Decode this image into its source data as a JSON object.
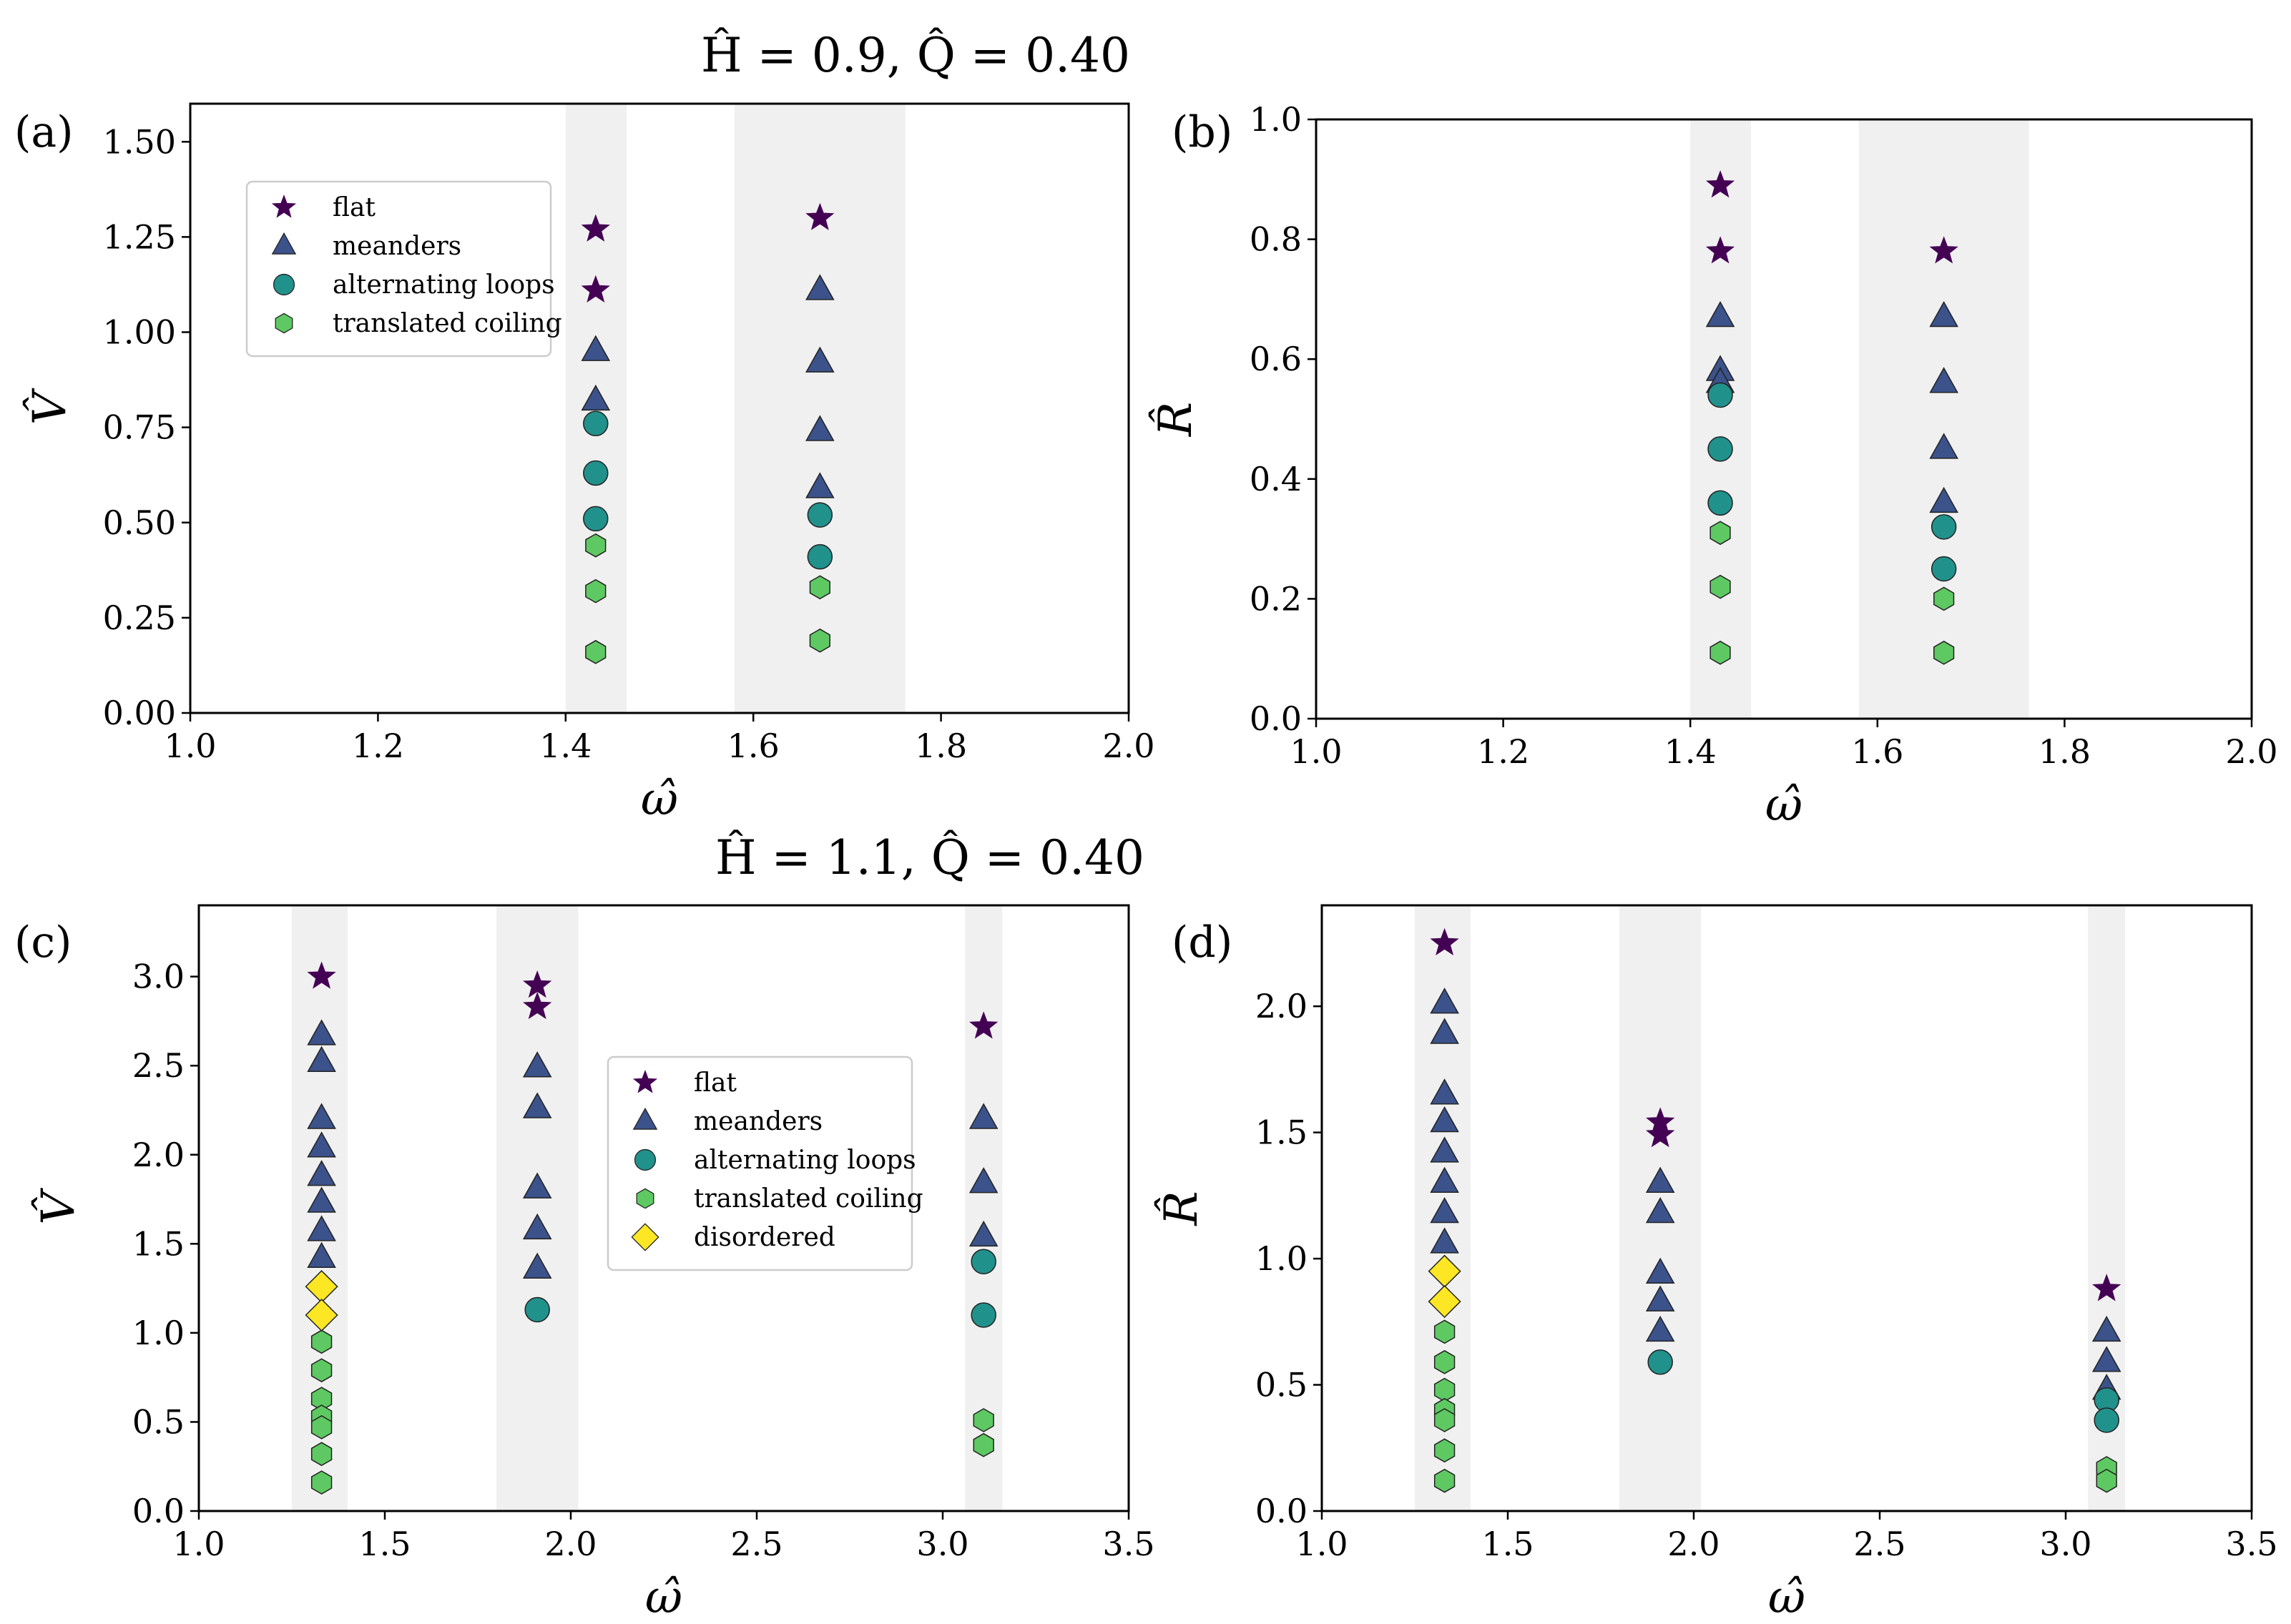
{
  "suptitles": {
    "top": "Ĥ = 0.9,  Q̂ = 0.40",
    "bottom": "Ĥ = 1.1,  Q̂ = 0.40"
  },
  "colors": {
    "flat": "#440154",
    "meanders": "#3b528b",
    "alternating loops": "#21918c",
    "translated coiling": "#5ec962",
    "disordered": "#fde725",
    "band": "#f0f0f0"
  },
  "chart_data": [
    {
      "type": "scatter",
      "panel": "(a)",
      "xlabel": "ω̂",
      "ylabel": "V̂",
      "xlim": [
        1.0,
        2.0
      ],
      "ylim": [
        0,
        1.6
      ],
      "xticks": [
        "1.0",
        "1.2",
        "1.4",
        "1.6",
        "1.8",
        "2.0"
      ],
      "yticks": [
        "0.00",
        "0.25",
        "0.50",
        "0.75",
        "1.00",
        "1.25",
        "1.50"
      ],
      "bands": [
        [
          1.4,
          1.465
        ],
        [
          1.58,
          1.762
        ]
      ],
      "legend": [
        "flat",
        "meanders",
        "alternating loops",
        "translated coiling"
      ],
      "legend_position": "upper-left",
      "series": [
        {
          "name": "flat",
          "points": [
            [
              1.432,
              1.27
            ],
            [
              1.432,
              1.11
            ],
            [
              1.671,
              1.3
            ]
          ]
        },
        {
          "name": "meanders",
          "points": [
            [
              1.432,
              0.95
            ],
            [
              1.432,
              0.82
            ],
            [
              1.671,
              1.11
            ],
            [
              1.671,
              0.92
            ],
            [
              1.671,
              0.74
            ],
            [
              1.671,
              0.59
            ]
          ]
        },
        {
          "name": "alternating loops",
          "points": [
            [
              1.432,
              0.76
            ],
            [
              1.432,
              0.63
            ],
            [
              1.432,
              0.51
            ],
            [
              1.671,
              0.52
            ],
            [
              1.671,
              0.41
            ]
          ]
        },
        {
          "name": "translated coiling",
          "points": [
            [
              1.432,
              0.44
            ],
            [
              1.432,
              0.32
            ],
            [
              1.432,
              0.16
            ],
            [
              1.671,
              0.33
            ],
            [
              1.671,
              0.19
            ]
          ]
        }
      ]
    },
    {
      "type": "scatter",
      "panel": "(b)",
      "xlabel": "ω̂",
      "ylabel": "R̂",
      "xlim": [
        1.0,
        2.0
      ],
      "ylim": [
        0,
        1.0
      ],
      "xticks": [
        "1.0",
        "1.2",
        "1.4",
        "1.6",
        "1.8",
        "2.0"
      ],
      "yticks": [
        "0.0",
        "0.2",
        "0.4",
        "0.6",
        "0.8",
        "1.0"
      ],
      "bands": [
        [
          1.4,
          1.465
        ],
        [
          1.58,
          1.762
        ]
      ],
      "legend": [],
      "series": [
        {
          "name": "flat",
          "points": [
            [
              1.432,
              0.89
            ],
            [
              1.432,
              0.78
            ],
            [
              1.671,
              0.78
            ]
          ]
        },
        {
          "name": "meanders",
          "points": [
            [
              1.432,
              0.67
            ],
            [
              1.432,
              0.58
            ],
            [
              1.432,
              0.56
            ],
            [
              1.671,
              0.67
            ],
            [
              1.671,
              0.56
            ],
            [
              1.671,
              0.45
            ],
            [
              1.671,
              0.36
            ]
          ]
        },
        {
          "name": "alternating loops",
          "points": [
            [
              1.432,
              0.54
            ],
            [
              1.432,
              0.45
            ],
            [
              1.432,
              0.36
            ],
            [
              1.671,
              0.32
            ],
            [
              1.671,
              0.25
            ]
          ]
        },
        {
          "name": "translated coiling",
          "points": [
            [
              1.432,
              0.31
            ],
            [
              1.432,
              0.22
            ],
            [
              1.432,
              0.11
            ],
            [
              1.671,
              0.2
            ],
            [
              1.671,
              0.11
            ]
          ]
        }
      ]
    },
    {
      "type": "scatter",
      "panel": "(c)",
      "xlabel": "ω̂",
      "ylabel": "V̂",
      "xlim": [
        1.0,
        3.5
      ],
      "ylim": [
        0,
        3.4
      ],
      "xticks": [
        "1.0",
        "1.5",
        "2.0",
        "2.5",
        "3.0",
        "3.5"
      ],
      "yticks": [
        "0.0",
        "0.5",
        "1.0",
        "1.5",
        "2.0",
        "2.5",
        "3.0"
      ],
      "bands": [
        [
          1.25,
          1.4
        ],
        [
          1.8,
          2.02
        ],
        [
          3.06,
          3.16
        ]
      ],
      "legend": [
        "flat",
        "meanders",
        "alternating loops",
        "translated coiling",
        "disordered"
      ],
      "legend_position": "center",
      "series": [
        {
          "name": "flat",
          "points": [
            [
              1.33,
              3.0
            ],
            [
              1.91,
              2.95
            ],
            [
              1.91,
              2.83
            ],
            [
              3.11,
              2.72
            ]
          ]
        },
        {
          "name": "meanders",
          "points": [
            [
              1.33,
              2.67
            ],
            [
              1.33,
              2.52
            ],
            [
              1.33,
              2.2
            ],
            [
              1.33,
              2.04
            ],
            [
              1.33,
              1.88
            ],
            [
              1.33,
              1.73
            ],
            [
              1.33,
              1.57
            ],
            [
              1.33,
              1.42
            ],
            [
              1.91,
              2.49
            ],
            [
              1.91,
              2.26
            ],
            [
              1.91,
              1.81
            ],
            [
              1.91,
              1.58
            ],
            [
              1.91,
              1.36
            ],
            [
              3.11,
              2.2
            ],
            [
              3.11,
              1.84
            ],
            [
              3.11,
              1.54
            ]
          ]
        },
        {
          "name": "alternating loops",
          "points": [
            [
              1.91,
              1.13
            ],
            [
              3.11,
              1.4
            ],
            [
              3.11,
              1.1
            ]
          ]
        },
        {
          "name": "translated coiling",
          "points": [
            [
              1.33,
              0.95
            ],
            [
              1.33,
              0.79
            ],
            [
              1.33,
              0.63
            ],
            [
              1.33,
              0.53
            ],
            [
              1.33,
              0.47
            ],
            [
              1.33,
              0.32
            ],
            [
              1.33,
              0.16
            ],
            [
              3.11,
              0.51
            ],
            [
              3.11,
              0.37
            ]
          ]
        },
        {
          "name": "disordered",
          "points": [
            [
              1.33,
              1.26
            ],
            [
              1.33,
              1.1
            ]
          ]
        }
      ]
    },
    {
      "type": "scatter",
      "panel": "(d)",
      "xlabel": "ω̂",
      "ylabel": "R̂",
      "xlim": [
        1.0,
        3.5
      ],
      "ylim": [
        0,
        2.4
      ],
      "xticks": [
        "1.0",
        "1.5",
        "2.0",
        "2.5",
        "3.0",
        "3.5"
      ],
      "yticks": [
        "0.0",
        "0.5",
        "1.0",
        "1.5",
        "2.0"
      ],
      "bands": [
        [
          1.25,
          1.4
        ],
        [
          1.8,
          2.02
        ],
        [
          3.06,
          3.16
        ]
      ],
      "legend": [],
      "series": [
        {
          "name": "flat",
          "points": [
            [
              1.33,
              2.25
            ],
            [
              1.91,
              1.54
            ],
            [
              1.91,
              1.49
            ],
            [
              3.11,
              0.88
            ]
          ]
        },
        {
          "name": "meanders",
          "points": [
            [
              1.33,
              2.01
            ],
            [
              1.33,
              1.89
            ],
            [
              1.33,
              1.65
            ],
            [
              1.33,
              1.54
            ],
            [
              1.33,
              1.42
            ],
            [
              1.33,
              1.3
            ],
            [
              1.33,
              1.18
            ],
            [
              1.33,
              1.06
            ],
            [
              1.91,
              1.3
            ],
            [
              1.91,
              1.18
            ],
            [
              1.91,
              0.94
            ],
            [
              1.91,
              0.83
            ],
            [
              1.91,
              0.71
            ],
            [
              3.11,
              0.71
            ],
            [
              3.11,
              0.59
            ],
            [
              3.11,
              0.48
            ]
          ]
        },
        {
          "name": "alternating loops",
          "points": [
            [
              1.91,
              0.59
            ],
            [
              3.11,
              0.44
            ],
            [
              3.11,
              0.36
            ]
          ]
        },
        {
          "name": "translated coiling",
          "points": [
            [
              1.33,
              0.71
            ],
            [
              1.33,
              0.59
            ],
            [
              1.33,
              0.48
            ],
            [
              1.33,
              0.4
            ],
            [
              1.33,
              0.36
            ],
            [
              1.33,
              0.24
            ],
            [
              1.33,
              0.12
            ],
            [
              3.11,
              0.17
            ],
            [
              3.11,
              0.12
            ]
          ]
        },
        {
          "name": "disordered",
          "points": [
            [
              1.33,
              0.95
            ],
            [
              1.33,
              0.83
            ]
          ]
        }
      ]
    }
  ]
}
